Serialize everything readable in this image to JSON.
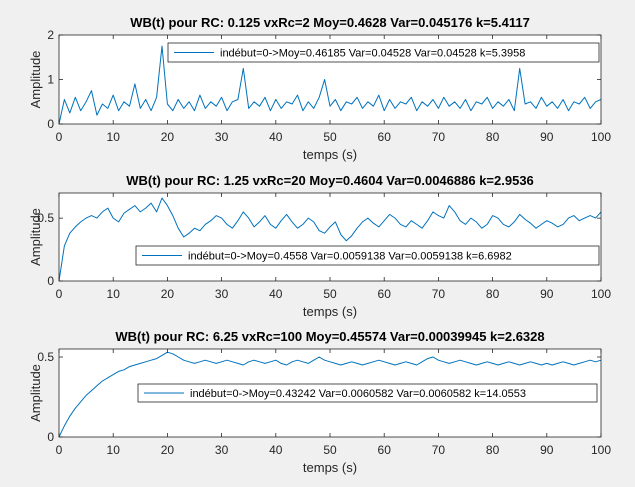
{
  "colors": {
    "line": "#0072bd",
    "axes_bg": "#ffffff",
    "figure_bg": "#f0f0f0",
    "axis": "#262626"
  },
  "chart_data": [
    {
      "type": "line",
      "title": "WB(t) pour  RC: 0.125 vxRc=2 Moy=0.4628 Var=0.045176 k=5.4117",
      "xlabel": "temps (s)",
      "ylabel": "Amplitude",
      "xlim": [
        0,
        100
      ],
      "ylim": [
        0,
        2
      ],
      "xticks": [
        "0",
        "10",
        "20",
        "30",
        "40",
        "50",
        "60",
        "70",
        "80",
        "90",
        "100"
      ],
      "yticks": [
        "0",
        "1",
        "2"
      ],
      "grid": false,
      "legend_position": "top-right",
      "series": [
        {
          "name": "indébut=0->Moy=0.46185 Var=0.04528 Var=0.04528 k=5.3958",
          "x": [
            0,
            1,
            2,
            3,
            4,
            5,
            6,
            7,
            8,
            9,
            10,
            11,
            12,
            13,
            14,
            15,
            16,
            17,
            18,
            19,
            20,
            21,
            22,
            23,
            24,
            25,
            26,
            27,
            28,
            29,
            30,
            31,
            32,
            33,
            34,
            35,
            36,
            37,
            38,
            39,
            40,
            41,
            42,
            43,
            44,
            45,
            46,
            47,
            48,
            49,
            50,
            51,
            52,
            53,
            54,
            55,
            56,
            57,
            58,
            59,
            60,
            61,
            62,
            63,
            64,
            65,
            66,
            67,
            68,
            69,
            70,
            71,
            72,
            73,
            74,
            75,
            76,
            77,
            78,
            79,
            80,
            81,
            82,
            83,
            84,
            85,
            86,
            87,
            88,
            89,
            90,
            91,
            92,
            93,
            94,
            95,
            96,
            97,
            98,
            99,
            100
          ],
          "y": [
            0.0,
            0.55,
            0.25,
            0.6,
            0.3,
            0.5,
            0.75,
            0.2,
            0.45,
            0.35,
            0.65,
            0.3,
            0.5,
            0.4,
            0.9,
            0.35,
            0.55,
            0.3,
            0.6,
            1.75,
            0.45,
            0.3,
            0.55,
            0.35,
            0.5,
            0.3,
            0.65,
            0.35,
            0.5,
            0.4,
            0.6,
            0.3,
            0.5,
            0.55,
            1.25,
            0.35,
            0.5,
            0.4,
            0.6,
            0.3,
            0.55,
            0.35,
            0.5,
            0.45,
            0.65,
            0.3,
            0.5,
            0.35,
            0.6,
            1.0,
            0.4,
            0.55,
            0.3,
            0.5,
            0.45,
            0.6,
            0.35,
            0.5,
            0.4,
            0.65,
            0.3,
            0.55,
            0.35,
            0.5,
            0.45,
            0.6,
            0.3,
            0.5,
            0.4,
            0.55,
            0.35,
            0.6,
            0.4,
            0.5,
            0.35,
            0.55,
            0.3,
            0.5,
            0.45,
            0.6,
            0.35,
            0.5,
            0.4,
            0.55,
            0.3,
            1.25,
            0.45,
            0.5,
            0.35,
            0.6,
            0.4,
            0.5,
            0.35,
            0.55,
            0.3,
            0.5,
            0.45,
            0.6,
            0.35,
            0.5,
            0.55
          ]
        }
      ]
    },
    {
      "type": "line",
      "title": "WB(t) pour  RC: 1.25 vxRc=20 Moy=0.4604 Var=0.0046886 k=2.9536",
      "xlabel": "temps (s)",
      "ylabel": "Amplitude",
      "xlim": [
        0,
        100
      ],
      "ylim": [
        0,
        0.7
      ],
      "xticks": [
        "0",
        "10",
        "20",
        "30",
        "40",
        "50",
        "60",
        "70",
        "80",
        "90",
        "100"
      ],
      "yticks": [
        "0",
        "0.5"
      ],
      "grid": false,
      "legend_position": "lower-right",
      "series": [
        {
          "name": "indébut=0->Moy=0.4558 Var=0.0059138 Var=0.0059138 k=6.6982",
          "x": [
            0,
            1,
            2,
            3,
            4,
            5,
            6,
            7,
            8,
            9,
            10,
            11,
            12,
            13,
            14,
            15,
            16,
            17,
            18,
            19,
            20,
            21,
            22,
            23,
            24,
            25,
            26,
            27,
            28,
            29,
            30,
            31,
            32,
            33,
            34,
            35,
            36,
            37,
            38,
            39,
            40,
            41,
            42,
            43,
            44,
            45,
            46,
            47,
            48,
            49,
            50,
            51,
            52,
            53,
            54,
            55,
            56,
            57,
            58,
            59,
            60,
            61,
            62,
            63,
            64,
            65,
            66,
            67,
            68,
            69,
            70,
            71,
            72,
            73,
            74,
            75,
            76,
            77,
            78,
            79,
            80,
            81,
            82,
            83,
            84,
            85,
            86,
            87,
            88,
            89,
            90,
            91,
            92,
            93,
            94,
            95,
            96,
            97,
            98,
            99,
            100
          ],
          "y": [
            0.0,
            0.28,
            0.38,
            0.43,
            0.47,
            0.5,
            0.52,
            0.5,
            0.55,
            0.58,
            0.5,
            0.47,
            0.54,
            0.57,
            0.6,
            0.55,
            0.58,
            0.62,
            0.55,
            0.66,
            0.6,
            0.52,
            0.42,
            0.35,
            0.38,
            0.42,
            0.4,
            0.45,
            0.48,
            0.52,
            0.5,
            0.45,
            0.42,
            0.48,
            0.55,
            0.5,
            0.43,
            0.47,
            0.52,
            0.45,
            0.42,
            0.48,
            0.53,
            0.47,
            0.42,
            0.45,
            0.5,
            0.47,
            0.4,
            0.38,
            0.43,
            0.47,
            0.37,
            0.32,
            0.36,
            0.42,
            0.47,
            0.5,
            0.46,
            0.43,
            0.48,
            0.53,
            0.5,
            0.45,
            0.43,
            0.48,
            0.45,
            0.42,
            0.48,
            0.55,
            0.52,
            0.5,
            0.6,
            0.55,
            0.48,
            0.45,
            0.5,
            0.47,
            0.42,
            0.45,
            0.52,
            0.5,
            0.45,
            0.43,
            0.47,
            0.53,
            0.49,
            0.46,
            0.42,
            0.45,
            0.48,
            0.46,
            0.43,
            0.45,
            0.5,
            0.52,
            0.48,
            0.5,
            0.52,
            0.5,
            0.55
          ]
        }
      ]
    },
    {
      "type": "line",
      "title": "WB(t) pour  RC: 6.25 vxRc=100 Moy=0.45574 Var=0.00039945 k=2.6328",
      "xlabel": "temps (s)",
      "ylabel": "Amplitude",
      "xlim": [
        0,
        100
      ],
      "ylim": [
        0,
        0.55
      ],
      "xticks": [
        "0",
        "10",
        "20",
        "30",
        "40",
        "50",
        "60",
        "70",
        "80",
        "90",
        "100"
      ],
      "yticks": [
        "0",
        "0.5"
      ],
      "grid": false,
      "legend_position": "right",
      "series": [
        {
          "name": "indébut=0->Moy=0.43242 Var=0.0060582 Var=0.0060582 k=14.0553",
          "x": [
            0,
            1,
            2,
            3,
            4,
            5,
            6,
            7,
            8,
            9,
            10,
            11,
            12,
            13,
            14,
            15,
            16,
            17,
            18,
            19,
            20,
            21,
            22,
            23,
            24,
            25,
            26,
            27,
            28,
            29,
            30,
            31,
            32,
            33,
            34,
            35,
            36,
            37,
            38,
            39,
            40,
            41,
            42,
            43,
            44,
            45,
            46,
            47,
            48,
            49,
            50,
            51,
            52,
            53,
            54,
            55,
            56,
            57,
            58,
            59,
            60,
            61,
            62,
            63,
            64,
            65,
            66,
            67,
            68,
            69,
            70,
            71,
            72,
            73,
            74,
            75,
            76,
            77,
            78,
            79,
            80,
            81,
            82,
            83,
            84,
            85,
            86,
            87,
            88,
            89,
            90,
            91,
            92,
            93,
            94,
            95,
            96,
            97,
            98,
            99,
            100
          ],
          "y": [
            0.0,
            0.07,
            0.13,
            0.18,
            0.22,
            0.26,
            0.29,
            0.32,
            0.35,
            0.37,
            0.39,
            0.41,
            0.42,
            0.44,
            0.45,
            0.46,
            0.47,
            0.48,
            0.49,
            0.51,
            0.53,
            0.52,
            0.5,
            0.48,
            0.47,
            0.46,
            0.47,
            0.48,
            0.47,
            0.46,
            0.47,
            0.48,
            0.47,
            0.46,
            0.45,
            0.47,
            0.48,
            0.47,
            0.46,
            0.47,
            0.48,
            0.46,
            0.45,
            0.47,
            0.48,
            0.47,
            0.46,
            0.48,
            0.5,
            0.48,
            0.47,
            0.46,
            0.45,
            0.46,
            0.47,
            0.46,
            0.45,
            0.46,
            0.47,
            0.48,
            0.47,
            0.46,
            0.45,
            0.46,
            0.47,
            0.46,
            0.45,
            0.47,
            0.49,
            0.5,
            0.48,
            0.47,
            0.46,
            0.47,
            0.48,
            0.47,
            0.46,
            0.45,
            0.46,
            0.47,
            0.46,
            0.45,
            0.46,
            0.47,
            0.46,
            0.45,
            0.46,
            0.47,
            0.46,
            0.45,
            0.46,
            0.45,
            0.46,
            0.47,
            0.46,
            0.45,
            0.46,
            0.47,
            0.48,
            0.47,
            0.48
          ]
        }
      ]
    }
  ]
}
